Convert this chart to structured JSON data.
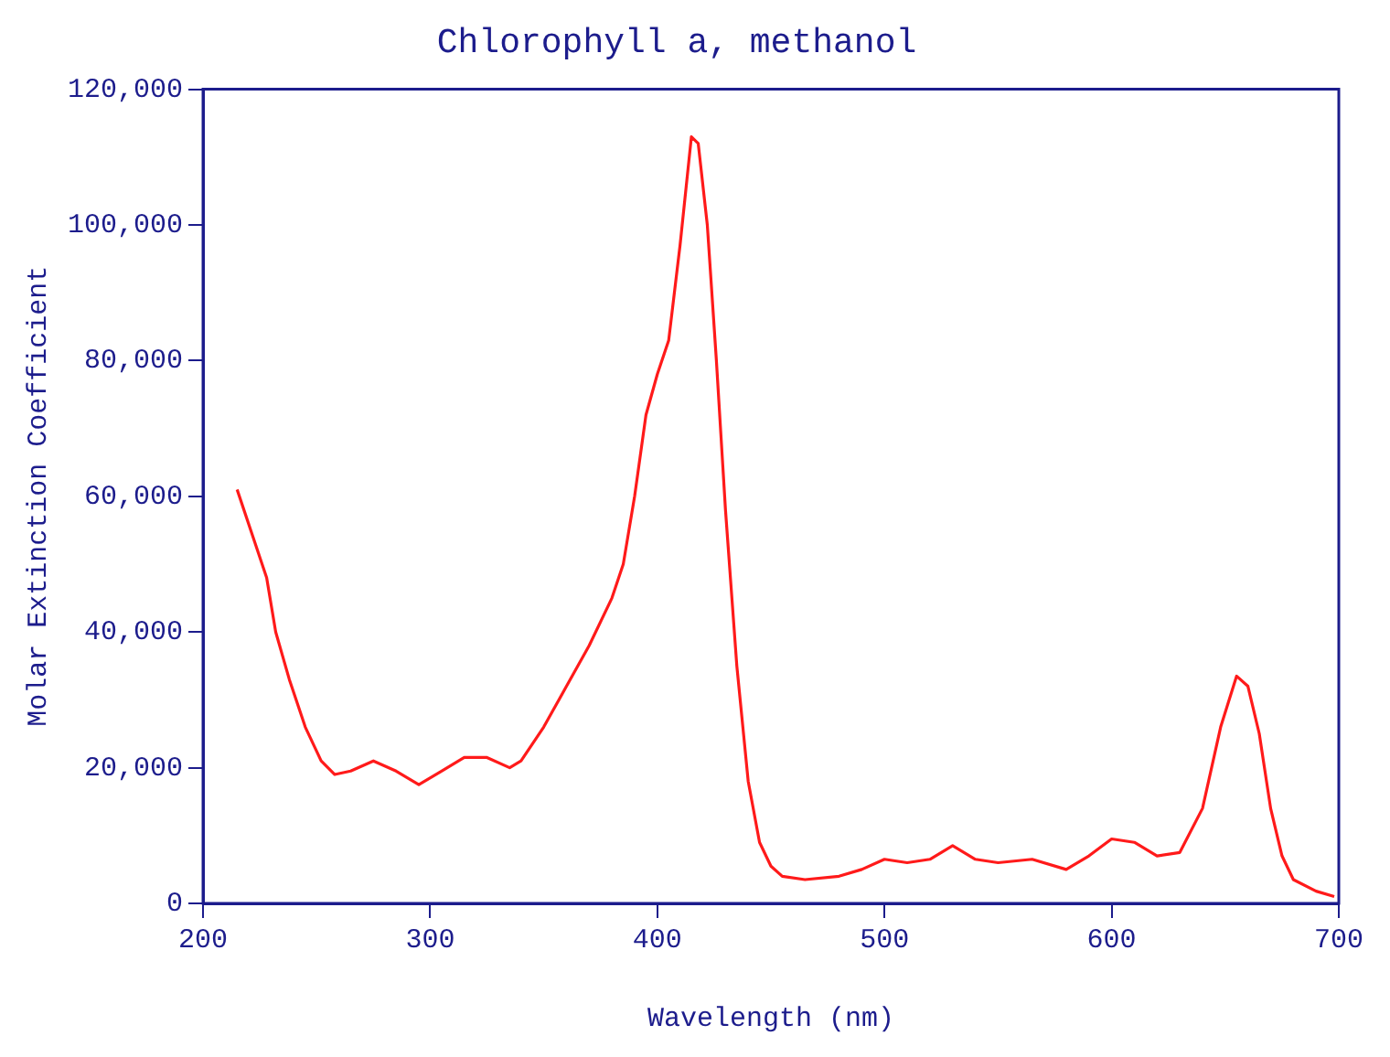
{
  "chart_data": {
    "type": "line",
    "title": "Chlorophyll a, methanol",
    "xlabel": "Wavelength (nm)",
    "ylabel": "Molar Extinction Coefficient",
    "xlim": [
      200,
      700
    ],
    "xticks": [
      200,
      300,
      400,
      500,
      600,
      700
    ],
    "ylim": [
      0,
      120000
    ],
    "yticks": [
      {
        "value": 0,
        "label": "0"
      },
      {
        "value": 20000,
        "label": "20,000"
      },
      {
        "value": 40000,
        "label": "40,000"
      },
      {
        "value": 60000,
        "label": "60,000"
      },
      {
        "value": 80000,
        "label": "80,000"
      },
      {
        "value": 100000,
        "label": "100,000"
      },
      {
        "value": 120000,
        "label": "120,000"
      }
    ],
    "grid": false,
    "legend": false,
    "marker": "none",
    "line_style": "solid",
    "series": [
      {
        "color": "#ff1a1a",
        "x": [
          215,
          222,
          228,
          232,
          238,
          245,
          252,
          258,
          265,
          275,
          285,
          295,
          305,
          315,
          325,
          335,
          340,
          350,
          360,
          370,
          380,
          385,
          390,
          395,
          400,
          405,
          410,
          415,
          418,
          422,
          426,
          430,
          435,
          440,
          445,
          450,
          455,
          465,
          480,
          490,
          500,
          510,
          520,
          530,
          540,
          550,
          565,
          580,
          590,
          600,
          610,
          620,
          630,
          640,
          648,
          655,
          660,
          665,
          670,
          675,
          680,
          690,
          698
        ],
        "values": [
          61000,
          54000,
          48000,
          40000,
          33000,
          26000,
          21000,
          19000,
          19500,
          21000,
          19500,
          17500,
          19500,
          21500,
          21500,
          20000,
          21000,
          26000,
          32000,
          38000,
          45000,
          50000,
          60000,
          72000,
          78000,
          83000,
          97000,
          113000,
          112000,
          100000,
          80000,
          58000,
          35000,
          18000,
          9000,
          5500,
          4000,
          3500,
          4000,
          5000,
          6500,
          6000,
          6500,
          8500,
          6500,
          6000,
          6500,
          5000,
          7000,
          9500,
          9000,
          7000,
          7500,
          14000,
          26000,
          33500,
          32000,
          25000,
          14000,
          7000,
          3500,
          1800,
          1000
        ]
      }
    ]
  }
}
